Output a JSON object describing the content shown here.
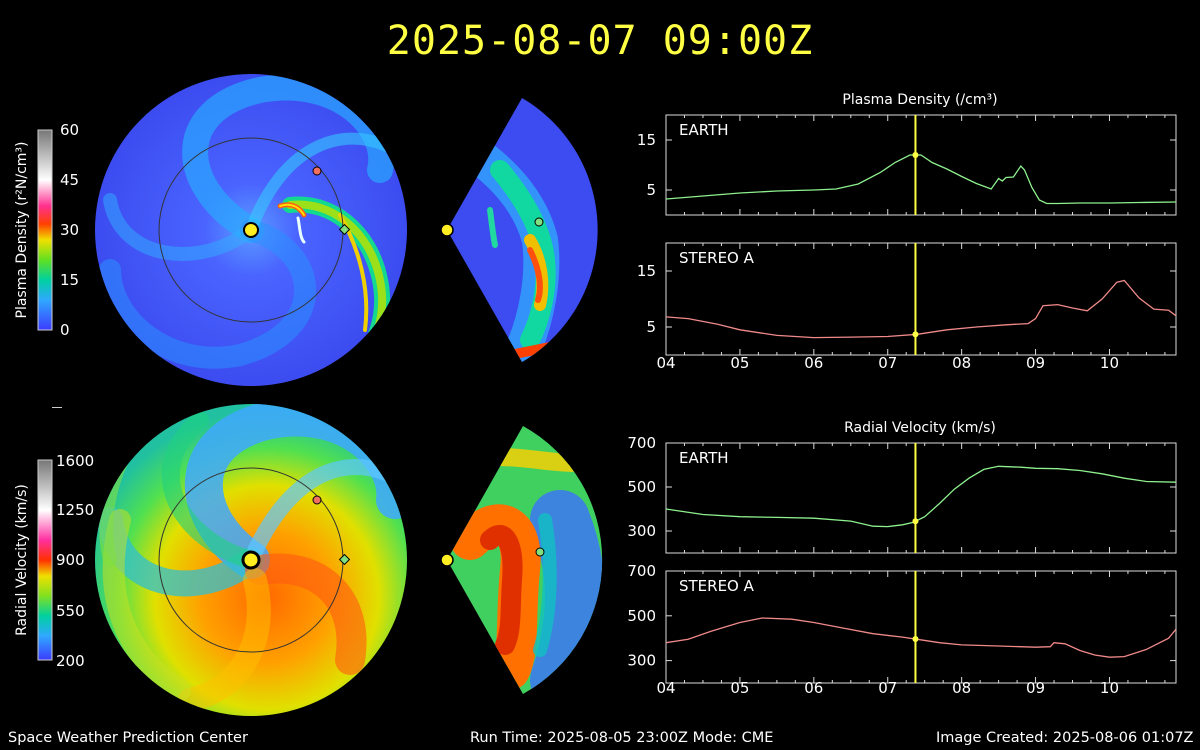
{
  "title": "2025-08-07  09:00Z",
  "footer": {
    "center": "Space Weather Prediction Center",
    "run": "Run Time: 2025-08-05 23:00Z  Mode: CME",
    "created": "Image Created: 2025-08-06 01:07Z"
  },
  "colors": {
    "earth": "#8ef08e",
    "stereo_a": "#f08a8a",
    "now_line": "#ffff44",
    "sun": "#ffee22",
    "background": "#000000"
  },
  "colorbars": [
    {
      "label": "Plasma Density (r²N/cm³)",
      "ticks": [
        "60",
        "45",
        "30",
        "15",
        "0"
      ]
    },
    {
      "label": "Radial Velocity (km/s)",
      "ticks": [
        "1600",
        "1250",
        "900",
        "550",
        "200"
      ]
    }
  ],
  "chart_data": [
    {
      "type": "line",
      "title": "Plasma Density (/cm³)",
      "x_ticks": [
        "04",
        "05",
        "06",
        "07",
        "08",
        "09",
        "10"
      ],
      "xlim": [
        4.0,
        10.9
      ],
      "current_time": 7.375,
      "panels": [
        {
          "label": "EARTH",
          "color": "#8ef08e",
          "ylim": [
            0,
            20
          ],
          "y_ticks": [
            5,
            15
          ],
          "x": [
            4.0,
            4.5,
            5.0,
            5.5,
            6.0,
            6.3,
            6.6,
            6.9,
            7.1,
            7.3,
            7.45,
            7.6,
            7.8,
            8.0,
            8.2,
            8.4,
            8.5,
            8.55,
            8.6,
            8.7,
            8.8,
            8.85,
            8.95,
            9.05,
            9.15,
            9.3,
            9.6,
            10.0,
            10.4,
            10.9
          ],
          "y": [
            3.2,
            3.8,
            4.4,
            4.8,
            5.0,
            5.2,
            6.2,
            8.5,
            10.5,
            12.0,
            12.0,
            10.5,
            9.2,
            7.7,
            6.3,
            5.2,
            7.3,
            6.8,
            7.5,
            7.6,
            9.8,
            9.0,
            5.5,
            3.0,
            2.3,
            2.3,
            2.4,
            2.4,
            2.5,
            2.6
          ]
        },
        {
          "label": "STEREO A",
          "color": "#f08a8a",
          "ylim": [
            0,
            20
          ],
          "y_ticks": [
            5,
            15
          ],
          "x": [
            4.0,
            4.3,
            4.7,
            5.0,
            5.5,
            6.0,
            6.5,
            7.0,
            7.4,
            7.8,
            8.2,
            8.6,
            8.9,
            9.0,
            9.1,
            9.3,
            9.5,
            9.7,
            9.9,
            10.1,
            10.2,
            10.4,
            10.6,
            10.8,
            10.9
          ],
          "y": [
            6.8,
            6.5,
            5.5,
            4.5,
            3.5,
            3.1,
            3.2,
            3.3,
            3.7,
            4.5,
            5.0,
            5.4,
            5.6,
            6.5,
            8.8,
            9.0,
            8.4,
            7.9,
            10.0,
            13.0,
            13.3,
            10.2,
            8.2,
            8.0,
            7.0
          ]
        }
      ]
    },
    {
      "type": "line",
      "title": "Radial Velocity (km/s)",
      "x_ticks": [
        "04",
        "05",
        "06",
        "07",
        "08",
        "09",
        "10"
      ],
      "xlim": [
        4.0,
        10.9
      ],
      "current_time": 7.375,
      "panels": [
        {
          "label": "EARTH",
          "color": "#8ef08e",
          "ylim": [
            200,
            700
          ],
          "y_ticks": [
            300,
            500,
            700
          ],
          "x": [
            4.0,
            4.5,
            5.0,
            5.5,
            6.0,
            6.5,
            6.8,
            7.0,
            7.2,
            7.35,
            7.5,
            7.7,
            7.9,
            8.1,
            8.3,
            8.5,
            8.8,
            9.0,
            9.3,
            9.6,
            9.9,
            10.2,
            10.5,
            10.9
          ],
          "y": [
            400,
            375,
            365,
            362,
            358,
            345,
            322,
            320,
            328,
            340,
            365,
            425,
            490,
            540,
            580,
            594,
            590,
            585,
            583,
            575,
            560,
            540,
            525,
            522
          ]
        },
        {
          "label": "STEREO A",
          "color": "#f08a8a",
          "ylim": [
            200,
            700
          ],
          "y_ticks": [
            300,
            500,
            700
          ],
          "x": [
            4.0,
            4.3,
            4.6,
            5.0,
            5.3,
            5.7,
            6.0,
            6.4,
            6.8,
            7.2,
            7.4,
            7.7,
            8.0,
            8.5,
            9.0,
            9.2,
            9.25,
            9.4,
            9.6,
            9.8,
            10.0,
            10.2,
            10.5,
            10.8,
            10.9
          ],
          "y": [
            380,
            395,
            430,
            470,
            490,
            485,
            470,
            445,
            420,
            405,
            395,
            380,
            370,
            365,
            360,
            362,
            380,
            375,
            345,
            325,
            315,
            318,
            350,
            400,
            440
          ]
        }
      ]
    }
  ]
}
